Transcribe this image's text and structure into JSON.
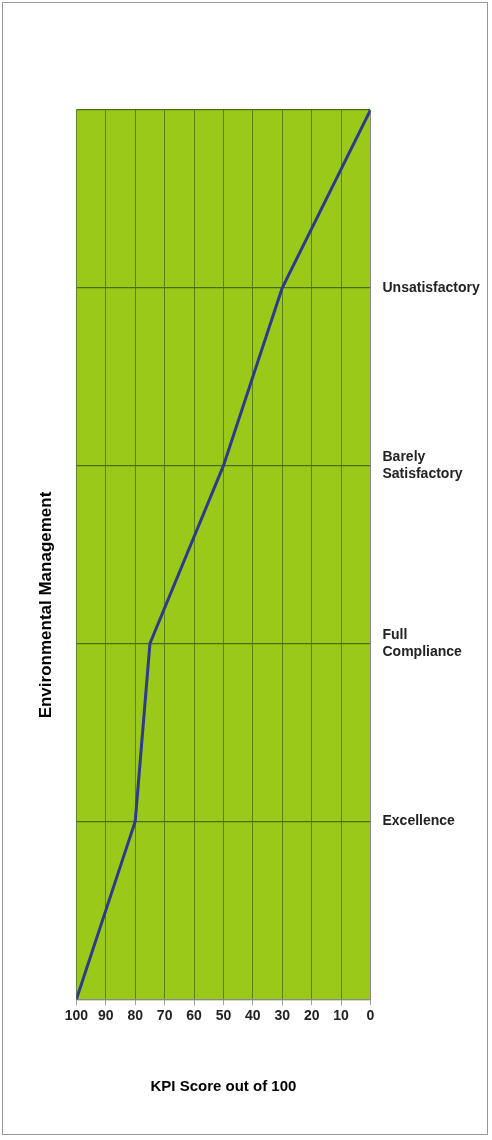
{
  "chart_data": {
    "type": "line",
    "orientation": "horizontal",
    "title": "Environmental Management",
    "xlabel": "KPI Score out of 100",
    "categories": [
      null,
      "Unsatisfactory",
      "Barely Satisfactory",
      "Full Compliance",
      "Excellence",
      null
    ],
    "values": [
      0,
      30,
      50,
      75,
      80,
      100
    ],
    "color": "#2e3a8c",
    "xlim": [
      100,
      0
    ],
    "xticks": [
      100,
      90,
      80,
      70,
      60,
      50,
      40,
      30,
      20,
      10,
      0
    ],
    "grid": true,
    "marker": "none"
  }
}
